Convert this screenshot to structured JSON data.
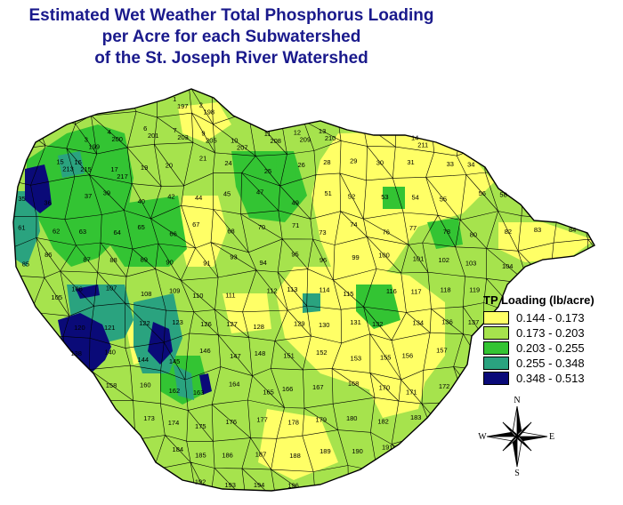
{
  "title_lines": [
    "Estimated Wet Weather Total Phosphorus Loading",
    "per Acre for each Subwatershed",
    "of the St. Joseph River Watershed"
  ],
  "legend": {
    "title": "TP Loading (lb/acre)",
    "items": [
      {
        "label": "0.144 - 0.173",
        "color": "#ffff66"
      },
      {
        "label": "0.173 - 0.203",
        "color": "#a6e34d"
      },
      {
        "label": "0.203 - 0.255",
        "color": "#33c433"
      },
      {
        "label": "0.255 - 0.348",
        "color": "#2aa37f"
      },
      {
        "label": "0.348 - 0.513",
        "color": "#0a0a78"
      }
    ]
  },
  "compass": {
    "n": "N",
    "s": "S",
    "e": "E",
    "w": "W"
  },
  "subwatershed_labels": [
    "1",
    "2",
    "3",
    "4",
    "6",
    "7",
    "9",
    "10",
    "11",
    "12",
    "13",
    "14",
    "15",
    "16",
    "17",
    "19",
    "20",
    "21",
    "24",
    "25",
    "26",
    "28",
    "29",
    "30",
    "31",
    "33",
    "34",
    "35",
    "36",
    "37",
    "39",
    "40",
    "42",
    "44",
    "45",
    "47",
    "49",
    "51",
    "52",
    "53",
    "54",
    "55",
    "56",
    "58",
    "61",
    "62",
    "63",
    "64",
    "65",
    "66",
    "67",
    "68",
    "70",
    "71",
    "73",
    "74",
    "76",
    "77",
    "78",
    "80",
    "82",
    "83",
    "84",
    "85",
    "86",
    "87",
    "88",
    "89",
    "90",
    "91",
    "93",
    "94",
    "95",
    "96",
    "99",
    "100",
    "101",
    "102",
    "103",
    "104",
    "105",
    "106",
    "107",
    "108",
    "109",
    "110",
    "111",
    "112",
    "113",
    "114",
    "115",
    "116",
    "117",
    "118",
    "119",
    "120",
    "121",
    "122",
    "123",
    "126",
    "127",
    "128",
    "129",
    "130",
    "131",
    "132",
    "134",
    "136",
    "137",
    "138",
    "140",
    "144",
    "145",
    "146",
    "147",
    "148",
    "151",
    "152",
    "153",
    "155",
    "156",
    "157",
    "158",
    "160",
    "162",
    "163",
    "164",
    "165",
    "166",
    "167",
    "168",
    "170",
    "171",
    "172",
    "173",
    "174",
    "175",
    "176",
    "177",
    "178",
    "179",
    "180",
    "182",
    "183",
    "184",
    "185",
    "186",
    "187",
    "188",
    "189",
    "190",
    "191",
    "192",
    "193",
    "194",
    "196",
    "197",
    "198",
    "199",
    "200",
    "201",
    "203",
    "205",
    "207",
    "208",
    "209",
    "210",
    "211",
    "213",
    "215",
    "217"
  ]
}
